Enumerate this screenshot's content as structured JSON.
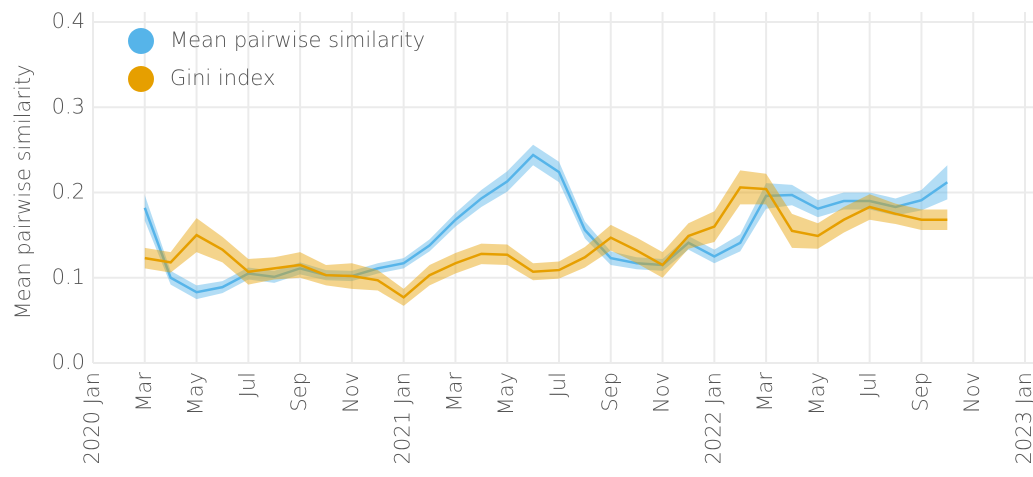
{
  "chart_data": {
    "type": "line",
    "y_label": "Mean pairwise similarity",
    "x": [
      "2020-03",
      "2020-04",
      "2020-05",
      "2020-06",
      "2020-07",
      "2020-08",
      "2020-09",
      "2020-10",
      "2020-11",
      "2020-12",
      "2021-01",
      "2021-02",
      "2021-03",
      "2021-04",
      "2021-05",
      "2021-06",
      "2021-07",
      "2021-08",
      "2021-09",
      "2021-10",
      "2021-11",
      "2021-12",
      "2022-01",
      "2022-02",
      "2022-03",
      "2022-04",
      "2022-05",
      "2022-06",
      "2022-07",
      "2022-08",
      "2022-09",
      "2022-10"
    ],
    "series": [
      {
        "name": "Mean pairwise similarity",
        "color": "#56b4e9",
        "values": [
          0.182,
          0.1,
          0.083,
          0.089,
          0.105,
          0.101,
          0.111,
          0.103,
          0.102,
          0.111,
          0.117,
          0.138,
          0.168,
          0.193,
          0.213,
          0.244,
          0.224,
          0.156,
          0.123,
          0.117,
          0.115,
          0.141,
          0.125,
          0.141,
          0.196,
          0.197,
          0.181,
          0.19,
          0.19,
          0.183,
          0.191,
          0.212
        ],
        "error": [
          0.015,
          0.008,
          0.008,
          0.007,
          0.007,
          0.007,
          0.007,
          0.006,
          0.006,
          0.006,
          0.006,
          0.007,
          0.008,
          0.01,
          0.012,
          0.012,
          0.012,
          0.01,
          0.008,
          0.007,
          0.007,
          0.008,
          0.008,
          0.01,
          0.015,
          0.012,
          0.01,
          0.01,
          0.01,
          0.01,
          0.012,
          0.02
        ]
      },
      {
        "name": "Gini index",
        "color": "#e69f00",
        "values": [
          0.123,
          0.118,
          0.15,
          0.133,
          0.107,
          0.111,
          0.115,
          0.103,
          0.102,
          0.097,
          0.077,
          0.103,
          0.117,
          0.128,
          0.127,
          0.107,
          0.109,
          0.124,
          0.147,
          0.132,
          0.115,
          0.149,
          0.16,
          0.206,
          0.204,
          0.155,
          0.149,
          0.168,
          0.183,
          0.175,
          0.168,
          0.168
        ],
        "error": [
          0.012,
          0.012,
          0.02,
          0.015,
          0.015,
          0.013,
          0.015,
          0.012,
          0.015,
          0.012,
          0.01,
          0.012,
          0.012,
          0.012,
          0.012,
          0.01,
          0.01,
          0.012,
          0.015,
          0.015,
          0.015,
          0.015,
          0.018,
          0.02,
          0.018,
          0.02,
          0.015,
          0.015,
          0.015,
          0.012,
          0.012,
          0.012
        ]
      }
    ],
    "xlim": [
      "2020-01",
      "2023-01"
    ],
    "xticks": [
      {
        "value": "2020-01",
        "label": "2020 Jan"
      },
      {
        "value": "2020-03",
        "label": "Mar"
      },
      {
        "value": "2020-05",
        "label": "May"
      },
      {
        "value": "2020-07",
        "label": "Jul"
      },
      {
        "value": "2020-09",
        "label": "Sep"
      },
      {
        "value": "2020-11",
        "label": "Nov"
      },
      {
        "value": "2021-01",
        "label": "2021 Jan"
      },
      {
        "value": "2021-03",
        "label": "Mar"
      },
      {
        "value": "2021-05",
        "label": "May"
      },
      {
        "value": "2021-07",
        "label": "Jul"
      },
      {
        "value": "2021-09",
        "label": "Sep"
      },
      {
        "value": "2021-11",
        "label": "Nov"
      },
      {
        "value": "2022-01",
        "label": "2022 Jan"
      },
      {
        "value": "2022-03",
        "label": "Mar"
      },
      {
        "value": "2022-05",
        "label": "May"
      },
      {
        "value": "2022-07",
        "label": "Jul"
      },
      {
        "value": "2022-09",
        "label": "Sep"
      },
      {
        "value": "2022-11",
        "label": "Nov"
      },
      {
        "value": "2023-01",
        "label": "2023 Jan"
      }
    ],
    "ylim": [
      0,
      0.4
    ],
    "yticks": [
      {
        "value": 0,
        "label": "0.0"
      },
      0.1,
      0.2,
      0.3,
      0.4
    ],
    "grid": true,
    "legend": "upper left"
  }
}
